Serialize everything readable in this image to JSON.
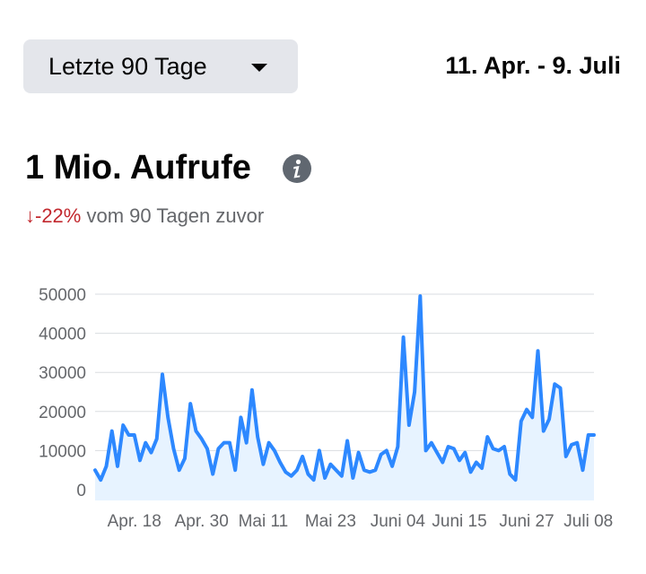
{
  "header": {
    "range_label": "Letzte 90 Tage",
    "date_range": "11. Apr. - 9. Juli"
  },
  "metric": {
    "title": "1 Mio. Aufrufe",
    "change_value": "↓-22%",
    "change_suffix": " vom 90 Tagen zuvor"
  },
  "icons": {
    "dropdown": "caret-down-icon",
    "info": "info-icon"
  },
  "colors": {
    "line": "#2d88ff",
    "area": "#e7f3ff",
    "negative_change": "#c2282e",
    "button_bg": "#e4e6eb",
    "muted_text": "#65676b",
    "gridline": "#dadde1"
  },
  "chart_data": {
    "type": "area",
    "title": "",
    "xlabel": "",
    "ylabel": "",
    "ylim": [
      0,
      50000
    ],
    "y_ticks": [
      0,
      10000,
      20000,
      30000,
      40000,
      50000
    ],
    "x_tick_labels": [
      "Apr. 18",
      "Apr. 30",
      "Mai 11",
      "Mai 23",
      "Juni 04",
      "Juni 15",
      "Juni 27",
      "Juli 08"
    ],
    "x_tick_indices": [
      7,
      19,
      30,
      42,
      54,
      65,
      77,
      88
    ],
    "grid": true,
    "legend": "none",
    "series": [
      {
        "values": [
          5000,
          2500,
          6000,
          15000,
          6000,
          16500,
          14000,
          14000,
          7500,
          12000,
          9500,
          13000,
          29500,
          18500,
          10500,
          5000,
          8000,
          22000,
          15000,
          13000,
          10500,
          4000,
          10500,
          12000,
          12000,
          5000,
          18500,
          12000,
          25500,
          13500,
          6500,
          12000,
          10000,
          7000,
          4500,
          3500,
          5000,
          8500,
          4000,
          2500,
          10000,
          3000,
          6500,
          5000,
          3500,
          12500,
          3000,
          9500,
          5000,
          4500,
          5000,
          9000,
          10000,
          6000,
          11000,
          39000,
          16500,
          25000,
          49500,
          10000,
          12000,
          9500,
          7000,
          11000,
          10500,
          7500,
          9500,
          4500,
          7000,
          5500,
          13500,
          10500,
          10000,
          11000,
          4000,
          2500,
          17500,
          20500,
          18500,
          35500,
          15000,
          18000,
          27000,
          26000,
          8500,
          11500,
          12000,
          5000,
          14000,
          14000
        ]
      }
    ]
  }
}
